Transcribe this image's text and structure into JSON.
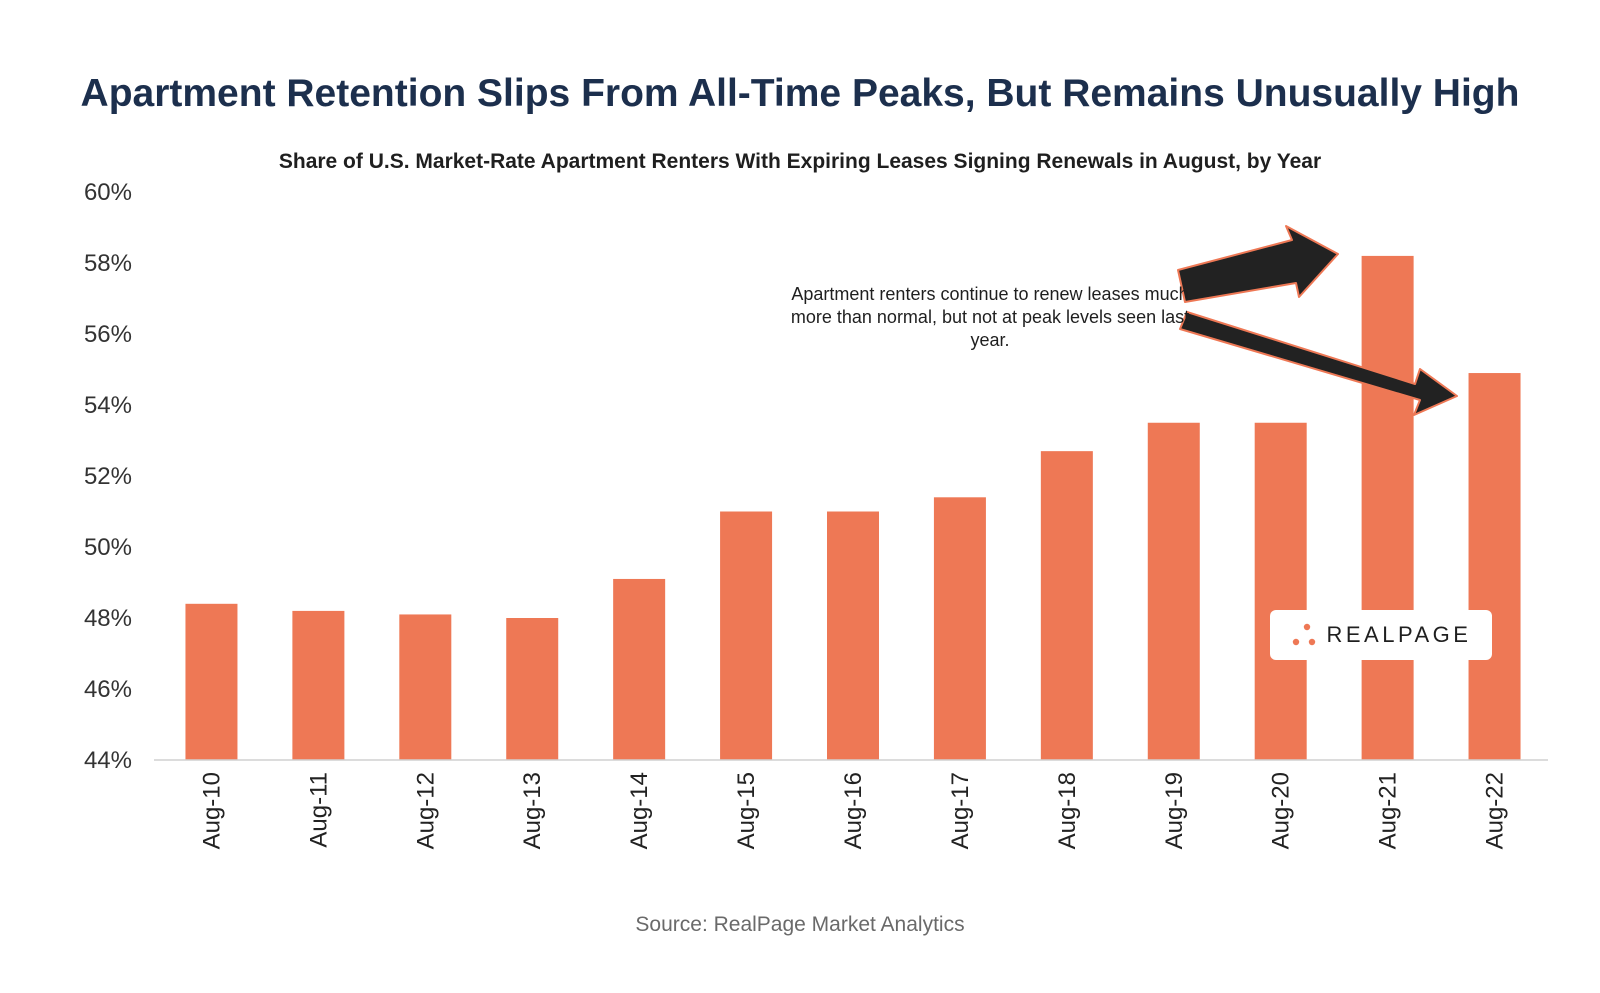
{
  "chart_data": {
    "type": "bar",
    "title": "Apartment Retention Slips From All-Time Peaks, But Remains Unusually High",
    "subtitle": "Share of U.S. Market-Rate Apartment Renters With Expiring Leases Signing Renewals in August, by Year",
    "categories": [
      "Aug-10",
      "Aug-11",
      "Aug-12",
      "Aug-13",
      "Aug-14",
      "Aug-15",
      "Aug-16",
      "Aug-17",
      "Aug-18",
      "Aug-19",
      "Aug-20",
      "Aug-21",
      "Aug-22"
    ],
    "values": [
      48.4,
      48.2,
      48.1,
      48.0,
      49.1,
      51.0,
      51.0,
      51.4,
      52.7,
      53.5,
      53.5,
      58.2,
      54.9
    ],
    "ylim": [
      44,
      60
    ],
    "yticks": [
      44,
      46,
      48,
      50,
      52,
      54,
      56,
      58,
      60
    ],
    "ytick_labels": [
      "44%",
      "46%",
      "48%",
      "50%",
      "52%",
      "54%",
      "56%",
      "58%",
      "60%"
    ],
    "xlabel": "",
    "ylabel": "",
    "bar_color": "#ee7855",
    "grid": false,
    "annotation": "Apartment renters continue to renew leases much more than normal, but not at peak levels seen last year."
  },
  "source": "Source: RealPage Market Analytics",
  "logo": {
    "text": "REALPAGE",
    "accent_color": "#ee7855"
  },
  "colors": {
    "title": "#1c2f4d",
    "arrow": "#222222",
    "arrow_outline": "#ee7855"
  }
}
